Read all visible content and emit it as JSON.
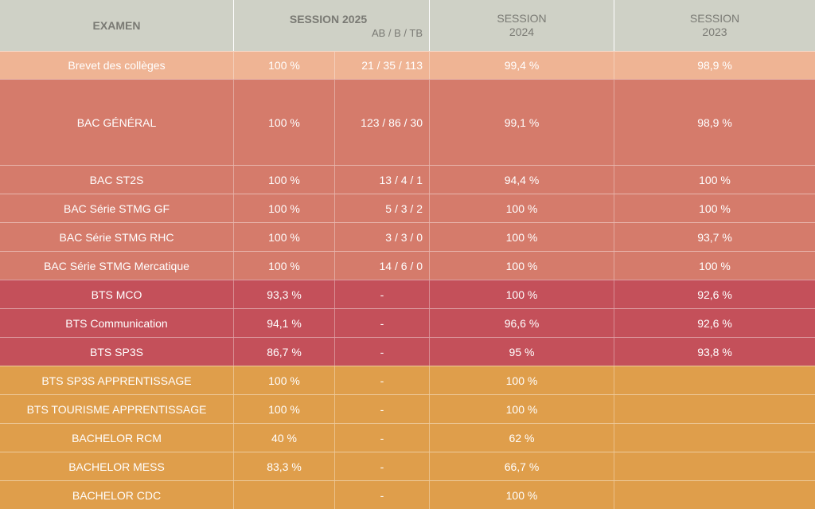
{
  "header": {
    "exam": "EXAMEN",
    "session_2025": "SESSION 2025",
    "session_2025_sub": "AB / B / TB",
    "session_2024_line1": "SESSION",
    "session_2024_line2": "2024",
    "session_2023_line1": "SESSION",
    "session_2023_line2": "2023"
  },
  "colors": {
    "header_bg": "#cfd1c6",
    "brevet": "#efb494",
    "bac": "#d57b6b",
    "bts": "#c4505a",
    "apprentissage": "#df9e4b"
  },
  "rows": [
    {
      "exam": "Brevet des collèges",
      "s2025": "100 %",
      "mentions": "21 / 35 / 113",
      "s2024": "99,4 %",
      "s2023": "98,9 %"
    },
    {
      "exam": "BAC GÉNÉRAL",
      "s2025": "100 %",
      "mentions": "123 / 86 / 30",
      "s2024": "99,1 %",
      "s2023": "98,9 %"
    },
    {
      "exam": "BAC ST2S",
      "s2025": "100 %",
      "mentions": "13 / 4 / 1",
      "s2024": "94,4 %",
      "s2023": "100 %"
    },
    {
      "exam": "BAC Série STMG GF",
      "s2025": "100 %",
      "mentions": "5 / 3 / 2",
      "s2024": "100 %",
      "s2023": "100 %"
    },
    {
      "exam": "BAC Série STMG RHC",
      "s2025": "100 %",
      "mentions": "3 / 3 / 0",
      "s2024": "100 %",
      "s2023": "93,7 %"
    },
    {
      "exam": "BAC Série STMG Mercatique",
      "s2025": "100 %",
      "mentions": "14 / 6 / 0",
      "s2024": "100 %",
      "s2023": "100 %"
    },
    {
      "exam": "BTS MCO",
      "s2025": "93,3 %",
      "mentions": "-",
      "s2024": "100 %",
      "s2023": "92,6 %"
    },
    {
      "exam": "BTS Communication",
      "s2025": "94,1 %",
      "mentions": "-",
      "s2024": "96,6 %",
      "s2023": "92,6 %"
    },
    {
      "exam": "BTS SP3S",
      "s2025": "86,7 %",
      "mentions": "-",
      "s2024": "95 %",
      "s2023": "93,8 %"
    },
    {
      "exam": "BTS SP3S APPRENTISSAGE",
      "s2025": "100 %",
      "mentions": "-",
      "s2024": "100 %",
      "s2023": ""
    },
    {
      "exam": "BTS TOURISME APPRENTISSAGE",
      "s2025": "100 %",
      "mentions": "-",
      "s2024": "100 %",
      "s2023": ""
    },
    {
      "exam": "BACHELOR RCM",
      "s2025": "40 %",
      "mentions": "-",
      "s2024": "62 %",
      "s2023": ""
    },
    {
      "exam": "BACHELOR MESS",
      "s2025": "83,3 %",
      "mentions": "-",
      "s2024": "66,7 %",
      "s2023": ""
    },
    {
      "exam": "BACHELOR CDC",
      "s2025": "",
      "mentions": "-",
      "s2024": "100 %",
      "s2023": ""
    }
  ]
}
